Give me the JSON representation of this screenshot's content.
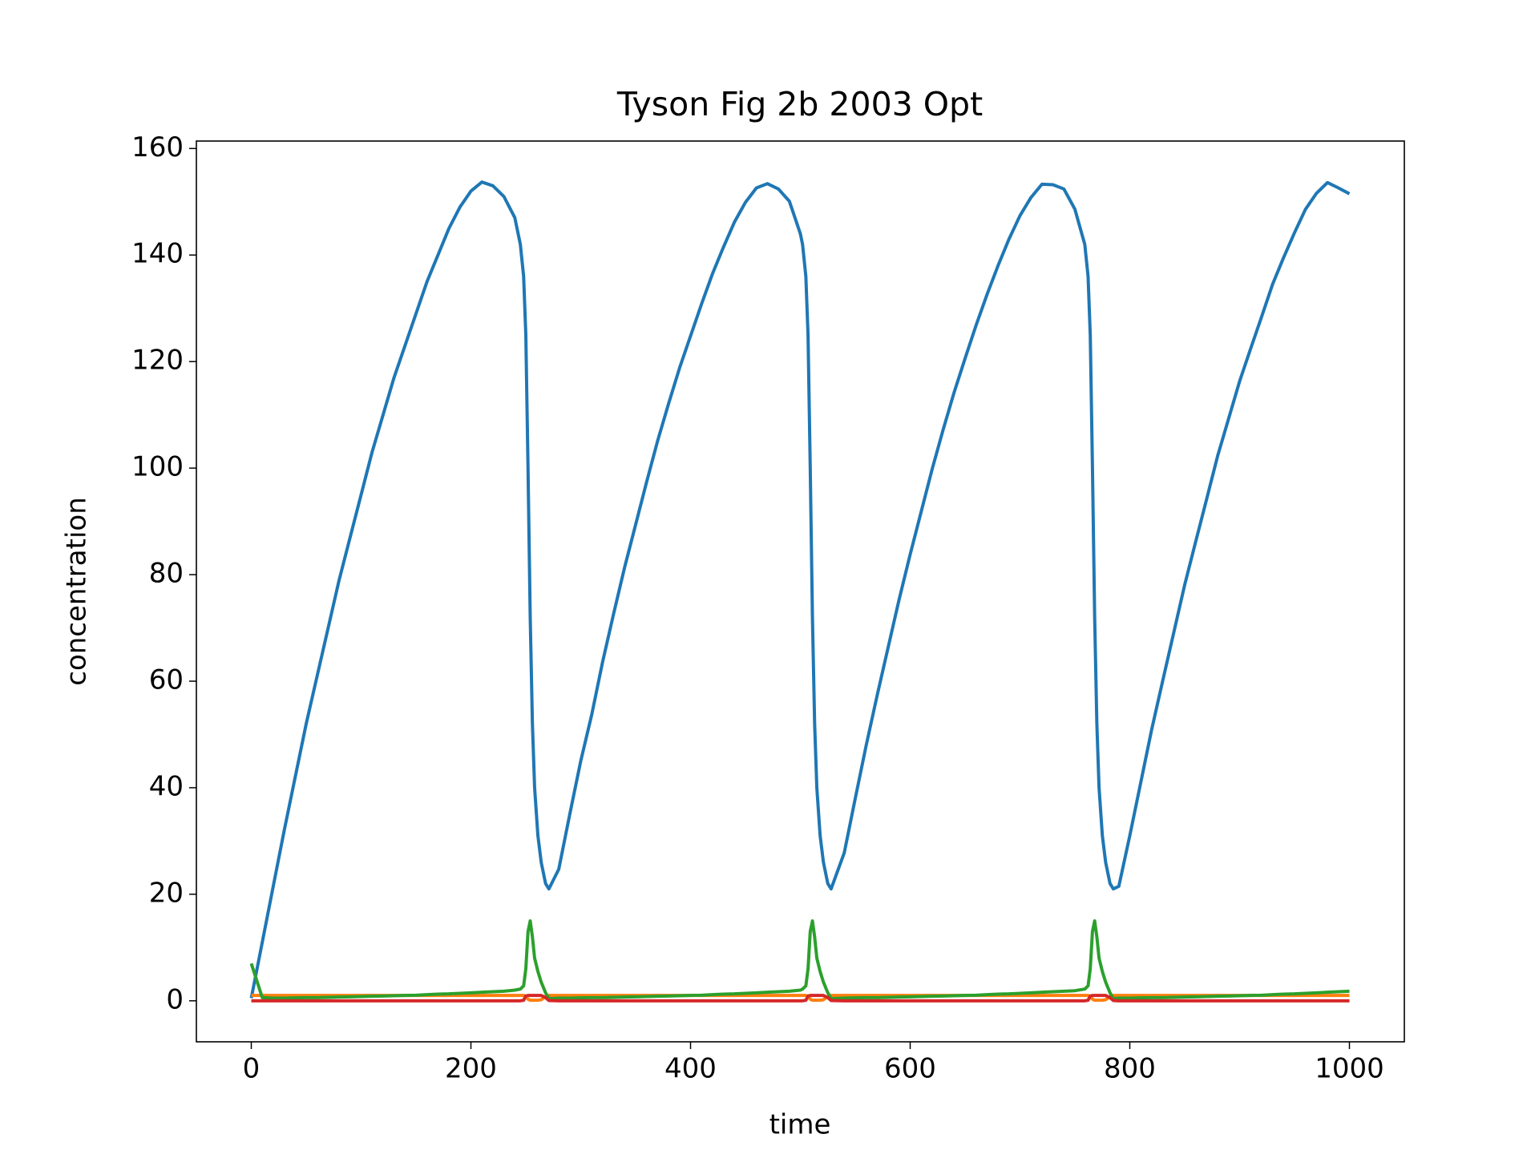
{
  "chart_data": {
    "type": "line",
    "title": "Tyson Fig 2b 2003 Opt",
    "x_label": "time",
    "y_label": "concentration",
    "x": [
      0,
      10,
      20,
      30,
      40,
      50,
      60,
      70,
      80,
      90,
      100,
      110,
      120,
      130,
      140,
      150,
      160,
      170,
      180,
      190,
      200,
      210,
      220,
      230,
      240,
      245,
      248,
      250,
      252,
      254,
      256,
      258,
      261,
      264,
      268,
      271,
      280,
      290,
      300,
      310,
      320,
      330,
      340,
      350,
      360,
      370,
      380,
      390,
      400,
      410,
      420,
      430,
      440,
      450,
      460,
      470,
      480,
      490,
      500,
      502,
      505,
      507,
      509,
      511,
      513,
      515,
      518,
      521,
      525,
      528,
      540,
      550,
      560,
      570,
      580,
      590,
      600,
      610,
      620,
      630,
      640,
      650,
      660,
      670,
      680,
      690,
      700,
      710,
      720,
      730,
      740,
      750,
      759,
      762,
      764,
      766,
      768,
      770,
      772,
      775,
      778,
      782,
      785,
      790,
      800,
      810,
      820,
      830,
      840,
      850,
      860,
      870,
      880,
      890,
      900,
      910,
      920,
      930,
      940,
      950,
      960,
      970,
      980,
      990,
      1000
    ],
    "series": [
      {
        "color": "#1f77b4",
        "values": [
          0.5,
          11,
          21.5,
          32,
          42,
          52,
          61,
          70,
          79,
          87,
          95,
          103,
          110,
          117,
          123,
          129,
          135,
          140,
          145,
          149,
          152,
          153.7,
          153,
          151,
          147,
          142,
          136,
          125,
          100,
          72,
          52,
          40,
          31,
          26,
          22,
          21,
          24.7,
          35,
          45,
          53.7,
          63.7,
          72.7,
          81.4,
          89.4,
          97.4,
          105.1,
          112.1,
          118.8,
          124.8,
          130.8,
          136.5,
          141.5,
          146.2,
          149.9,
          152.6,
          153.4,
          152.4,
          150.1,
          144,
          142,
          136,
          125,
          100,
          72,
          52,
          40,
          31,
          26,
          22,
          21,
          27.8,
          38,
          48,
          57.4,
          66.4,
          75.4,
          83.8,
          91.8,
          99.8,
          107.2,
          114.2,
          120.6,
          126.8,
          132.6,
          138,
          143,
          147.4,
          150.8,
          153.3,
          153.2,
          152.4,
          148.6,
          142,
          136,
          125,
          100,
          72,
          52,
          40,
          31,
          26,
          22,
          21,
          21.5,
          31,
          41,
          51,
          60.1,
          69.1,
          78.1,
          86.2,
          94.2,
          102.3,
          109.3,
          116.3,
          122.4,
          128.4,
          134.5,
          139.5,
          144.2,
          148.6,
          151.6,
          153.6,
          152.6,
          151.5
        ]
      },
      {
        "color": "#ff7f0e",
        "values": [
          1,
          1,
          1,
          1,
          1,
          1,
          1,
          1,
          1,
          1,
          1,
          1,
          1,
          1,
          1,
          1,
          1,
          1,
          1,
          1,
          1,
          1,
          1,
          1,
          1,
          1,
          1,
          0.9,
          0.3,
          0.1,
          0.1,
          0.1,
          0.1,
          0.2,
          0.8,
          1,
          1,
          1,
          1,
          1,
          1,
          1,
          1,
          1,
          1,
          1,
          1,
          1,
          1,
          1,
          1,
          1,
          1,
          1,
          1,
          1,
          1,
          1,
          1,
          1,
          1,
          0.9,
          0.3,
          0.1,
          0.1,
          0.1,
          0.1,
          0.2,
          0.8,
          1,
          1,
          1,
          1,
          1,
          1,
          1,
          1,
          1,
          1,
          1,
          1,
          1,
          1,
          1,
          1,
          1,
          1,
          1,
          1,
          1,
          1,
          1,
          1,
          1,
          0.9,
          0.3,
          0.1,
          0.1,
          0.1,
          0.1,
          0.2,
          0.8,
          1,
          1,
          1,
          1,
          1,
          1,
          1,
          1,
          1,
          1,
          1,
          1,
          1,
          1,
          1,
          1,
          1,
          1,
          1,
          1,
          1,
          1,
          1
        ]
      },
      {
        "color": "#2ca02c",
        "values": [
          7,
          0.6,
          0.5,
          0.5,
          0.55,
          0.6,
          0.6,
          0.65,
          0.7,
          0.75,
          0.8,
          0.85,
          0.9,
          0.95,
          1,
          1.05,
          1.15,
          1.25,
          1.3,
          1.4,
          1.5,
          1.6,
          1.7,
          1.8,
          2,
          2.2,
          2.8,
          6,
          13,
          15,
          12,
          8,
          5.5,
          3.5,
          1.5,
          0.4,
          0.5,
          0.5,
          0.55,
          0.6,
          0.6,
          0.65,
          0.7,
          0.75,
          0.8,
          0.85,
          0.9,
          0.95,
          1,
          1.05,
          1.15,
          1.25,
          1.3,
          1.4,
          1.5,
          1.6,
          1.7,
          1.8,
          2,
          2.2,
          2.8,
          6,
          13,
          15,
          12,
          8,
          5.5,
          3.5,
          1.5,
          0.4,
          0.5,
          0.55,
          0.6,
          0.6,
          0.65,
          0.7,
          0.75,
          0.8,
          0.85,
          0.9,
          0.95,
          1,
          1.05,
          1.15,
          1.25,
          1.3,
          1.4,
          1.5,
          1.6,
          1.7,
          1.8,
          1.9,
          2.2,
          2.8,
          6,
          13,
          15,
          12,
          8,
          5.5,
          3.5,
          1.5,
          0.4,
          0.5,
          0.5,
          0.55,
          0.6,
          0.6,
          0.65,
          0.7,
          0.75,
          0.8,
          0.85,
          0.9,
          0.95,
          1,
          1.05,
          1.15,
          1.25,
          1.3,
          1.4,
          1.5,
          1.6,
          1.7,
          1.8
        ]
      },
      {
        "color": "#d62728",
        "values": [
          0,
          0,
          0,
          0,
          0,
          0,
          0,
          0,
          0,
          0,
          0,
          0,
          0,
          0,
          0,
          0,
          0,
          0,
          0,
          0,
          0,
          0,
          0,
          0,
          0,
          0,
          0.1,
          0.9,
          1,
          1,
          1,
          1,
          1,
          1,
          0.6,
          0.05,
          0,
          0,
          0,
          0,
          0,
          0,
          0,
          0,
          0,
          0,
          0,
          0,
          0,
          0,
          0,
          0,
          0,
          0,
          0,
          0,
          0,
          0,
          0,
          0,
          0.1,
          0.9,
          1,
          1,
          1,
          1,
          1,
          1,
          0.6,
          0.05,
          0,
          0,
          0,
          0,
          0,
          0,
          0,
          0,
          0,
          0,
          0,
          0,
          0,
          0,
          0,
          0,
          0,
          0,
          0,
          0,
          0,
          0,
          0,
          0.1,
          0.9,
          1,
          1,
          1,
          1,
          1,
          1,
          0.6,
          0.05,
          0,
          0,
          0,
          0,
          0,
          0,
          0,
          0,
          0,
          0,
          0,
          0,
          0,
          0,
          0,
          0,
          0,
          0,
          0,
          0,
          0,
          0
        ]
      }
    ],
    "xlim": [
      -50,
      1050
    ],
    "ylim": [
      -7.7,
      161.4
    ],
    "xticks": [
      0,
      200,
      400,
      600,
      800,
      1000
    ],
    "yticks": [
      0,
      20,
      40,
      60,
      80,
      100,
      120,
      140,
      160
    ]
  }
}
